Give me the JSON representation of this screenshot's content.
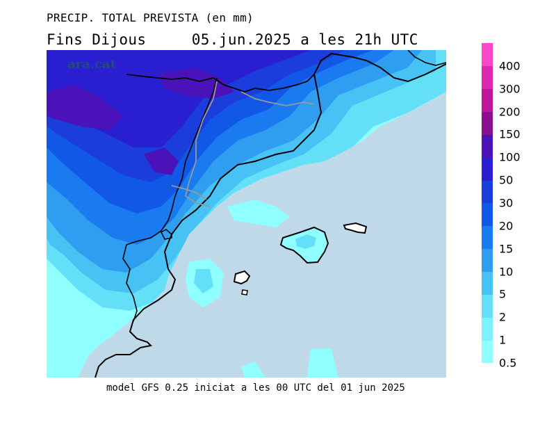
{
  "header": {
    "title": "PRECIP. TOTAL PREVISTA (en mm)",
    "subtitle": "Fins Dijous     05.jun.2025 a les 21h UTC"
  },
  "map": {
    "watermark": "ara.cat",
    "sea_color": "#bfd9e8",
    "places": [
      "Mallorca",
      "Menorca",
      "Eivissa"
    ]
  },
  "legend": {
    "levels": [
      {
        "label": "0.5",
        "color": "#8fffff"
      },
      {
        "label": "1",
        "color": "#7df2ff"
      },
      {
        "label": "2",
        "color": "#63e0f8"
      },
      {
        "label": "5",
        "color": "#46c2f5"
      },
      {
        "label": "10",
        "color": "#2f9ef0"
      },
      {
        "label": "15",
        "color": "#1a7bf0"
      },
      {
        "label": "20",
        "color": "#1258e6"
      },
      {
        "label": "30",
        "color": "#1a3ddc"
      },
      {
        "label": "50",
        "color": "#2a1fd0"
      },
      {
        "label": "100",
        "color": "#4a12b8"
      },
      {
        "label": "150",
        "color": "#8a1090"
      },
      {
        "label": "200",
        "color": "#c0169a"
      },
      {
        "label": "300",
        "color": "#e025b0"
      },
      {
        "label": "400",
        "color": "#ff45c8"
      }
    ]
  },
  "footer": "model GFS 0.25 iniciat a les 00 UTC del 01 jun 2025"
}
